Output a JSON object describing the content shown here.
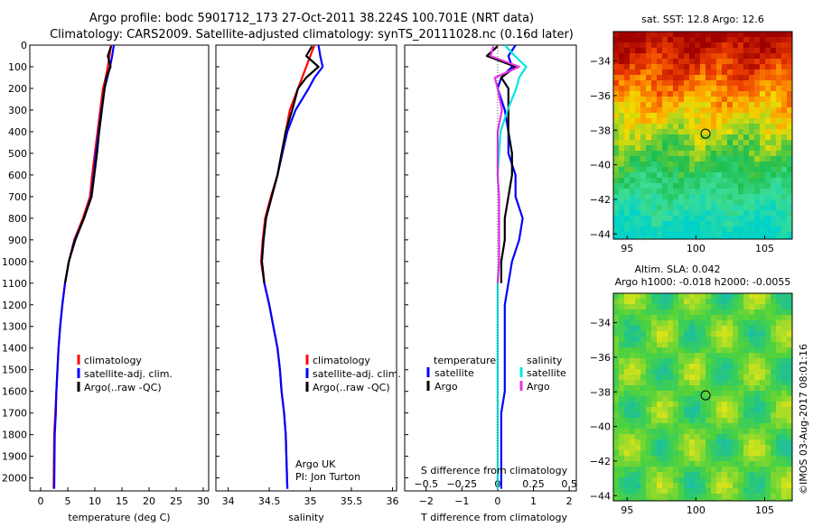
{
  "header": {
    "line1": "Argo profile: bodc 5901712_173 27-Oct-2011 38.224S 100.701E (NRT data)",
    "line2": "Climatology: CARS2009. Satellite-adjusted climatology: synTS_20111028.nc (0.16d later)"
  },
  "colors": {
    "climatology": "#ff0000",
    "satellite": "#0000ff",
    "argo": "#000000",
    "salinity_satellite": "#00e5e5",
    "salinity_argo": "#e633e6"
  },
  "chart_data": [
    {
      "type": "line",
      "id": "temperature",
      "xlabel": "temperature (deg C)",
      "ylabel": "",
      "xlim": [
        -2,
        31
      ],
      "ylim": [
        2060,
        0
      ],
      "xticks": [
        0,
        5,
        10,
        15,
        20,
        25,
        30
      ],
      "yticks": [
        0,
        100,
        200,
        300,
        400,
        500,
        600,
        700,
        800,
        900,
        1000,
        1100,
        1200,
        1300,
        1400,
        1500,
        1600,
        1700,
        1800,
        1900,
        2000
      ],
      "legend": {
        "placement": "bottom-center",
        "entries": [
          "climatology",
          "satellite-adj. clim.",
          "Argo(..raw -QC)"
        ]
      },
      "series": [
        {
          "name": "climatology",
          "color": "#ff0000",
          "x": [
            13,
            12.7,
            12.4,
            12,
            11.5,
            11,
            10.5,
            10,
            9.5,
            9.1,
            7.8,
            6.2,
            5.2,
            4.5,
            4,
            3.6,
            3.3,
            3.1,
            2.9,
            2.7,
            2.5,
            2.4
          ],
          "y": [
            0,
            50,
            100,
            150,
            200,
            300,
            400,
            500,
            600,
            700,
            800,
            900,
            1000,
            1100,
            1200,
            1300,
            1400,
            1500,
            1600,
            1700,
            1800,
            2050
          ]
        },
        {
          "name": "satellite-adj. clim.",
          "color": "#0000ff",
          "x": [
            13.5,
            13.2,
            12.8,
            12.3,
            11.8,
            11.2,
            10.7,
            10.2,
            9.8,
            9.3,
            8,
            6.3,
            5.2,
            4.5,
            4,
            3.6,
            3.3,
            3.1,
            2.9,
            2.8,
            2.6,
            2.5
          ],
          "y": [
            0,
            50,
            100,
            150,
            200,
            300,
            400,
            500,
            600,
            700,
            800,
            900,
            1000,
            1100,
            1200,
            1300,
            1400,
            1500,
            1600,
            1700,
            1800,
            2050
          ]
        },
        {
          "name": "Argo(..raw -QC)",
          "color": "#000000",
          "x": [
            13,
            12.4,
            12.9,
            12.1,
            11.8,
            11.3,
            10.8,
            10.4,
            9.9,
            9.4,
            8,
            6.4,
            5.2,
            4.5
          ],
          "y": [
            5,
            50,
            100,
            150,
            200,
            300,
            400,
            500,
            600,
            700,
            800,
            900,
            1000,
            1100
          ]
        }
      ]
    },
    {
      "type": "line",
      "id": "salinity",
      "xlabel": "salinity",
      "ylabel": "",
      "xlim": [
        33.85,
        36.05
      ],
      "ylim": [
        2060,
        0
      ],
      "xticks": [
        34,
        34.5,
        35,
        35.5,
        36
      ],
      "legend": {
        "placement": "bottom-center",
        "entries": [
          "climatology",
          "satellite-adj. clim.",
          "Argo(..raw -QC)"
        ]
      },
      "annotation": [
        "Argo UK",
        "PI: Jon Turton"
      ],
      "series": [
        {
          "name": "climatology",
          "color": "#ff0000",
          "x": [
            35.05,
            35,
            34.95,
            34.9,
            34.85,
            34.75,
            34.7,
            34.65,
            34.6,
            34.52,
            34.45,
            34.42,
            34.4,
            34.44,
            34.5,
            34.55,
            34.6,
            34.63,
            34.65,
            34.68,
            34.7,
            34.72
          ],
          "y": [
            0,
            50,
            100,
            150,
            200,
            300,
            400,
            500,
            600,
            700,
            800,
            900,
            1000,
            1100,
            1200,
            1300,
            1400,
            1500,
            1600,
            1700,
            1800,
            2050
          ]
        },
        {
          "name": "satellite-adj. clim.",
          "color": "#0000ff",
          "x": [
            35.1,
            35.12,
            35.15,
            35.05,
            34.98,
            34.82,
            34.72,
            34.66,
            34.6,
            34.53,
            34.46,
            34.43,
            34.41,
            34.44,
            34.5,
            34.55,
            34.6,
            34.63,
            34.65,
            34.68,
            34.7,
            34.72
          ],
          "y": [
            0,
            50,
            100,
            150,
            200,
            300,
            400,
            500,
            600,
            700,
            800,
            900,
            1000,
            1100,
            1200,
            1300,
            1400,
            1500,
            1600,
            1700,
            1800,
            2050
          ]
        },
        {
          "name": "Argo(..raw -QC)",
          "color": "#000000",
          "x": [
            35.02,
            34.95,
            35.1,
            34.95,
            34.85,
            34.78,
            34.7,
            34.65,
            34.6,
            34.53,
            34.46,
            34.43,
            34.41,
            34.44
          ],
          "y": [
            5,
            50,
            100,
            150,
            200,
            300,
            400,
            500,
            600,
            700,
            800,
            900,
            1000,
            1100
          ]
        }
      ]
    },
    {
      "type": "line",
      "id": "differences",
      "xlabel": "T difference from climatology",
      "x2label": "S difference from climatology",
      "xlim": [
        -2.6,
        2.2
      ],
      "x2lim": [
        -0.65,
        0.55
      ],
      "ylim": [
        2060,
        0
      ],
      "xticks": [
        -2,
        -1,
        0,
        1,
        2
      ],
      "x2ticks": [
        -0.5,
        -0.25,
        0,
        0.25,
        0.5
      ],
      "legend": {
        "placement": "bottom",
        "temperature_title": "temperature",
        "salinity_title": "salinity",
        "temperature_entries": [
          "satellite",
          "Argo"
        ],
        "salinity_entries": [
          "satellite",
          "Argo"
        ]
      },
      "series": [
        {
          "name": "temperature satellite",
          "color": "#0000ff",
          "x": [
            0.5,
            0.3,
            0.4,
            0.1,
            0,
            0.2,
            0.3,
            0.3,
            0.5,
            0.5,
            0.7,
            0.6,
            0.4,
            0.3,
            0.2,
            0.2,
            0.2,
            0.2,
            0.2,
            0.1,
            0.1,
            0.1
          ],
          "y": [
            0,
            50,
            100,
            150,
            200,
            300,
            400,
            500,
            600,
            700,
            800,
            900,
            1000,
            1100,
            1200,
            1300,
            1400,
            1500,
            1600,
            1700,
            1800,
            2050
          ]
        },
        {
          "name": "temperature Argo",
          "color": "#000000",
          "x": [
            0,
            -0.3,
            0.5,
            0.1,
            0.3,
            0.3,
            0.3,
            0.4,
            0.4,
            0.3,
            0.2,
            0.2,
            0.1,
            0.1
          ],
          "y": [
            5,
            50,
            100,
            150,
            200,
            300,
            400,
            500,
            600,
            700,
            800,
            900,
            1000,
            1100
          ]
        },
        {
          "name": "salinity satellite",
          "color": "#00e5e5",
          "x2": [
            0.05,
            0.12,
            0.2,
            0.15,
            0.13,
            0.07,
            0.02,
            0.01,
            0,
            0.01,
            0.01,
            0.01,
            0.01,
            0,
            0,
            0,
            0,
            0,
            0,
            0,
            0,
            0
          ],
          "y": [
            0,
            50,
            100,
            150,
            200,
            300,
            400,
            500,
            600,
            700,
            800,
            900,
            1000,
            1100,
            1200,
            1300,
            1400,
            1500,
            1600,
            1700,
            1800,
            2050
          ]
        },
        {
          "name": "salinity Argo",
          "color": "#e633e6",
          "x2": [
            -0.03,
            -0.05,
            0.15,
            -0.02,
            0,
            0.03,
            0,
            0,
            0,
            0.01,
            0.01,
            0.01,
            0.01,
            0
          ],
          "y": [
            5,
            50,
            100,
            150,
            200,
            300,
            400,
            500,
            600,
            700,
            800,
            900,
            1000,
            1100
          ]
        }
      ]
    },
    {
      "type": "heatmap",
      "id": "sst-map",
      "title": "sat. SST: 12.8  Argo: 12.6",
      "xlim": [
        94,
        107
      ],
      "ylim": [
        -44.3,
        -32.3
      ],
      "xticks": [
        95,
        100,
        105
      ],
      "yticks": [
        -34,
        -36,
        -38,
        -40,
        -42,
        -44
      ],
      "profile_marker": {
        "lon": 100.7,
        "lat": -38.2
      }
    },
    {
      "type": "heatmap",
      "id": "sla-map",
      "title": "Altim. SLA: 0.042",
      "subtitle": "Argo h1000: -0.018  h2000: -0.0055",
      "xlim": [
        94,
        107
      ],
      "ylim": [
        -44.3,
        -32.3
      ],
      "xticks": [
        95,
        100,
        105
      ],
      "yticks": [
        -34,
        -36,
        -38,
        -40,
        -42,
        -44
      ],
      "profile_marker": {
        "lon": 100.7,
        "lat": -38.2
      }
    }
  ],
  "footer": {
    "copyright": "©IMOS 03-Aug-2017 08:01:16"
  }
}
